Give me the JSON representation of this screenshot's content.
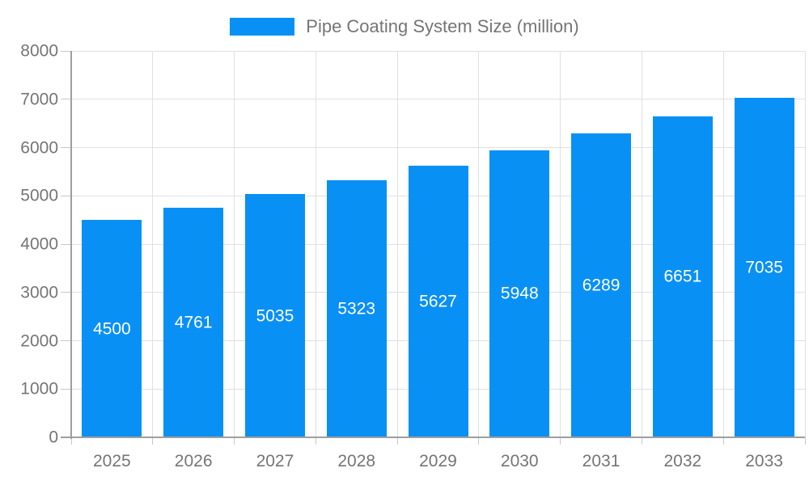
{
  "chart_data": {
    "type": "bar",
    "categories": [
      "2025",
      "2026",
      "2027",
      "2028",
      "2029",
      "2030",
      "2031",
      "2032",
      "2033"
    ],
    "values": [
      4500,
      4761,
      5035,
      5323,
      5627,
      5948,
      6289,
      6651,
      7035
    ],
    "title": "",
    "xlabel": "",
    "ylabel": "",
    "legend_label": "Pipe Coating System Size (million)",
    "legend_position": "top-center",
    "ylim": [
      0,
      8000
    ],
    "ytick_step": 1000,
    "yticks": [
      0,
      1000,
      2000,
      3000,
      4000,
      5000,
      6000,
      7000,
      8000
    ],
    "grid": true,
    "bar_labels_shown": true,
    "colors": {
      "bar": "#0990F5",
      "bar_value_text": "#ffffff",
      "axis_text": "#757575",
      "legend_text": "#757575",
      "gridline": "#e0e0e0",
      "axis_line": "#9e9e9e",
      "tick": "#c8c8c8",
      "background": "#ffffff"
    }
  }
}
